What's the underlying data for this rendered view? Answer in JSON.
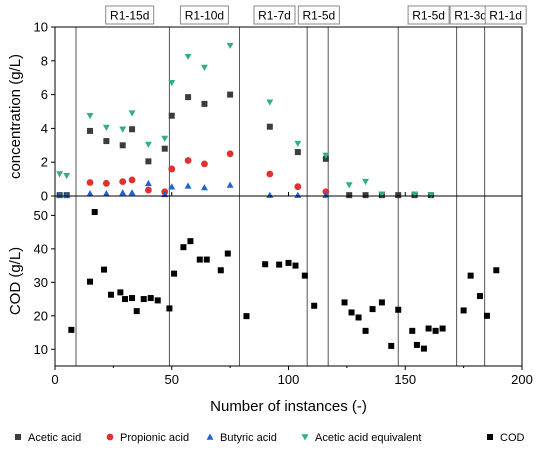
{
  "chart_data": {
    "type": "scatter",
    "xlabel": "Number of instances (-)",
    "xlim": [
      0,
      200
    ],
    "x_ticks": [
      "0",
      "50",
      "100",
      "150",
      "200"
    ],
    "phases": [
      {
        "label": "R1-15d",
        "x": 9
      },
      {
        "label": "R1-10d",
        "x": 49
      },
      {
        "label": "R1-7d",
        "x": 79
      },
      {
        "label": "R1-5d",
        "x": 108
      },
      {
        "label": "R1-5d",
        "x": 117
      },
      {
        "label": "R1-3d",
        "x": 147
      },
      {
        "label": "R1-1d",
        "x": 172
      },
      {
        "x": 184
      }
    ],
    "phase_labels": [
      {
        "text": "R1-15d",
        "x": 32
      },
      {
        "text": "R1-10d",
        "x": 64
      },
      {
        "text": "R1-7d",
        "x": 94
      },
      {
        "text": "R1-5d",
        "x": 113
      },
      {
        "text": "R1-5d",
        "x": 160
      },
      {
        "text": "R1-3d",
        "x": 178
      },
      {
        "text": "R1-1d",
        "x": 193
      }
    ],
    "top_panel": {
      "ylabel": "concentration (g/L)",
      "ylim": [
        0,
        10
      ],
      "y_ticks": [
        "0",
        "2",
        "4",
        "6",
        "8",
        "10"
      ],
      "series": [
        {
          "name": "Acetic acid",
          "color": "#3c3c3c",
          "marker": "square",
          "points": [
            [
              2,
              0.05
            ],
            [
              5,
              0.05
            ],
            [
              15,
              3.85
            ],
            [
              22,
              3.25
            ],
            [
              29,
              3.0
            ],
            [
              33,
              3.95
            ],
            [
              40,
              2.05
            ],
            [
              47,
              2.8
            ],
            [
              50,
              4.75
            ],
            [
              57,
              5.85
            ],
            [
              64,
              5.45
            ],
            [
              75,
              6.0
            ],
            [
              92,
              4.1
            ],
            [
              104,
              2.6
            ],
            [
              116,
              2.2
            ],
            [
              126,
              0.05
            ],
            [
              133,
              0.05
            ],
            [
              140,
              0.05
            ],
            [
              147,
              0.05
            ],
            [
              154,
              0.05
            ],
            [
              161,
              0.05
            ]
          ]
        },
        {
          "name": "Propionic acid",
          "color": "#e03030",
          "marker": "circle",
          "points": [
            [
              15,
              0.8
            ],
            [
              22,
              0.75
            ],
            [
              29,
              0.85
            ],
            [
              33,
              0.95
            ],
            [
              40,
              0.35
            ],
            [
              47,
              0.25
            ],
            [
              50,
              1.6
            ],
            [
              57,
              2.1
            ],
            [
              64,
              1.9
            ],
            [
              75,
              2.5
            ],
            [
              92,
              1.3
            ],
            [
              104,
              0.55
            ],
            [
              116,
              0.25
            ]
          ]
        },
        {
          "name": "Butyric acid",
          "color": "#2060d8",
          "marker": "triangle-up",
          "points": [
            [
              2,
              0.05
            ],
            [
              5,
              0.05
            ],
            [
              15,
              0.15
            ],
            [
              22,
              0.15
            ],
            [
              29,
              0.2
            ],
            [
              33,
              0.2
            ],
            [
              40,
              0.75
            ],
            [
              47,
              0.1
            ],
            [
              50,
              0.55
            ],
            [
              57,
              0.6
            ],
            [
              64,
              0.5
            ],
            [
              75,
              0.65
            ],
            [
              92,
              0.05
            ],
            [
              104,
              0.05
            ],
            [
              116,
              0.05
            ]
          ]
        },
        {
          "name": "Acetic acid equivalent",
          "color": "#30b080",
          "marker": "triangle-down",
          "points": [
            [
              2,
              1.3
            ],
            [
              5,
              1.2
            ],
            [
              15,
              4.75
            ],
            [
              22,
              4.05
            ],
            [
              29,
              3.95
            ],
            [
              33,
              4.9
            ],
            [
              40,
              3.05
            ],
            [
              47,
              3.4
            ],
            [
              50,
              6.7
            ],
            [
              57,
              8.25
            ],
            [
              64,
              7.6
            ],
            [
              75,
              8.9
            ],
            [
              92,
              5.55
            ],
            [
              104,
              3.1
            ],
            [
              116,
              2.4
            ],
            [
              126,
              0.65
            ],
            [
              133,
              0.85
            ],
            [
              140,
              0.1
            ],
            [
              154,
              0.1
            ],
            [
              161,
              0.05
            ]
          ]
        }
      ]
    },
    "bottom_panel": {
      "ylabel": "COD (g/L)",
      "ylim": [
        5,
        54
      ],
      "y_ticks": [
        "10",
        "20",
        "30",
        "40",
        "50"
      ],
      "series": [
        {
          "name": "COD",
          "color": "#000000",
          "marker": "square",
          "points": [
            [
              7,
              15.8
            ],
            [
              15,
              30.2
            ],
            [
              17,
              51.0
            ],
            [
              21,
              33.8
            ],
            [
              24,
              26.3
            ],
            [
              28,
              27.0
            ],
            [
              30,
              25.0
            ],
            [
              33,
              25.3
            ],
            [
              35,
              21.4
            ],
            [
              38,
              25.0
            ],
            [
              41,
              25.3
            ],
            [
              44,
              24.6
            ],
            [
              49,
              22.2
            ],
            [
              51,
              32.6
            ],
            [
              55,
              40.5
            ],
            [
              58,
              42.3
            ],
            [
              62,
              36.8
            ],
            [
              65,
              36.8
            ],
            [
              71,
              33.6
            ],
            [
              74,
              38.6
            ],
            [
              82,
              19.9
            ],
            [
              90,
              35.4
            ],
            [
              96,
              35.3
            ],
            [
              100,
              35.8
            ],
            [
              103,
              35.0
            ],
            [
              107,
              32.0
            ],
            [
              111,
              23.0
            ],
            [
              124,
              24.0
            ],
            [
              127,
              21.0
            ],
            [
              130,
              19.5
            ],
            [
              133,
              15.5
            ],
            [
              136,
              22.0
            ],
            [
              140,
              24.0
            ],
            [
              144,
              11.0
            ],
            [
              147,
              21.8
            ],
            [
              153,
              15.5
            ],
            [
              155,
              11.3
            ],
            [
              158,
              10.2
            ],
            [
              160,
              16.2
            ],
            [
              163,
              15.5
            ],
            [
              166,
              16.2
            ],
            [
              175,
              21.6
            ],
            [
              178,
              32.0
            ],
            [
              182,
              25.9
            ],
            [
              185,
              20.0
            ],
            [
              189,
              33.6
            ]
          ]
        }
      ]
    },
    "legend": [
      {
        "label": "Acetic acid",
        "marker": "square",
        "color": "#3c3c3c"
      },
      {
        "label": "Propionic acid",
        "marker": "circle",
        "color": "#e03030"
      },
      {
        "label": "Butyric acid",
        "marker": "triangle-up",
        "color": "#2060d8"
      },
      {
        "label": "Acetic acid equivalent",
        "marker": "triangle-down",
        "color": "#30b080"
      },
      {
        "label": "COD",
        "marker": "square",
        "color": "#000000"
      }
    ]
  }
}
